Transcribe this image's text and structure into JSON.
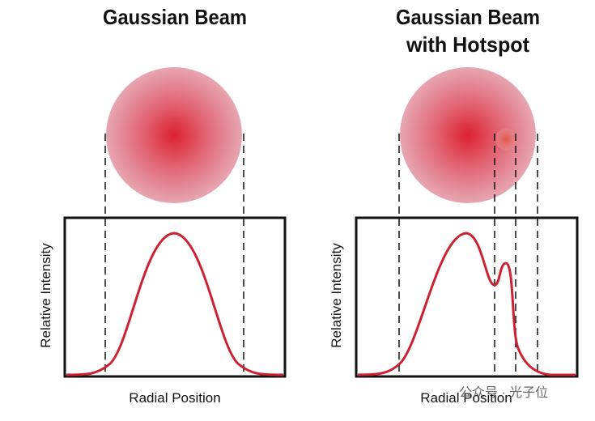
{
  "left_panel": {
    "title": "Gaussian Beam",
    "y_label": "Relative Intensity",
    "x_label": "Radial Position"
  },
  "right_panel": {
    "title_lines": [
      "Gaussian Beam",
      "with Hotspot"
    ],
    "y_label": "Relative Intensity",
    "x_label": "Radial Position"
  },
  "watermark": "公众号 · 光子位"
}
